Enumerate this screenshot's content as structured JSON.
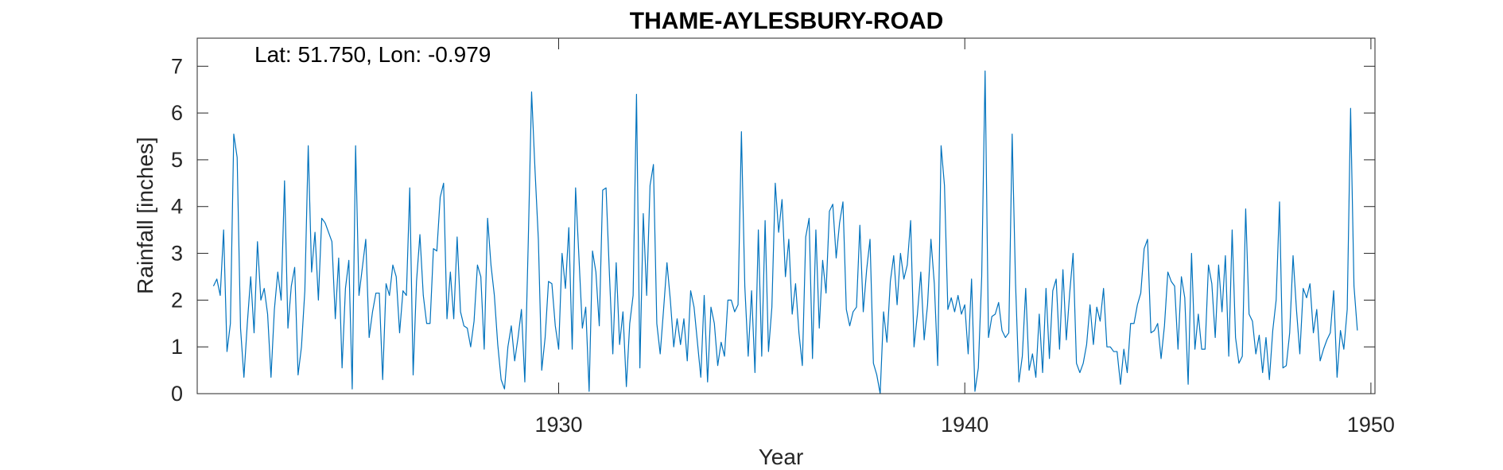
{
  "chart_data": {
    "type": "line",
    "title": "THAME-AYLESBURY-ROAD",
    "annotation": "Lat: 51.750, Lon: -0.979",
    "xlabel": "Year",
    "ylabel": "Rainfall [inches]",
    "xlim": [
      1921.1,
      1950.1
    ],
    "ylim": [
      0,
      7.6
    ],
    "xticks": [
      1930,
      1940,
      1950
    ],
    "yticks": [
      0,
      1,
      2,
      3,
      4,
      5,
      6,
      7
    ],
    "grid": false,
    "line_color": "#0072BD",
    "series": [
      {
        "x_start": 1921.5,
        "x_step": 0.0833333,
        "values": [
          2.3,
          2.45,
          2.1,
          3.5,
          0.9,
          1.5,
          5.55,
          5.05,
          1.4,
          0.35,
          1.5,
          2.5,
          1.3,
          3.25,
          2.0,
          2.25,
          1.7,
          0.35,
          1.8,
          2.6,
          2.0,
          4.55,
          1.4,
          2.3,
          2.7,
          0.4,
          1.0,
          2.2,
          5.3,
          2.6,
          3.45,
          2.0,
          3.75,
          3.65,
          3.45,
          3.25,
          1.6,
          2.9,
          0.55,
          2.25,
          2.85,
          0.1,
          5.3,
          2.1,
          2.7,
          3.3,
          1.2,
          1.75,
          2.15,
          2.15,
          0.3,
          2.35,
          2.1,
          2.75,
          2.5,
          1.3,
          2.2,
          2.1,
          4.4,
          0.4,
          2.4,
          3.4,
          2.1,
          1.5,
          1.5,
          3.1,
          3.05,
          4.2,
          4.5,
          1.6,
          2.6,
          1.6,
          3.35,
          1.75,
          1.45,
          1.4,
          1.0,
          1.55,
          2.75,
          2.5,
          0.95,
          3.75,
          2.75,
          2.1,
          1.05,
          0.3,
          0.1,
          1.0,
          1.45,
          0.7,
          1.2,
          1.8,
          0.25,
          3.2,
          6.45,
          4.8,
          3.3,
          0.5,
          1.2,
          2.4,
          2.35,
          1.45,
          0.95,
          3.0,
          2.25,
          3.55,
          0.95,
          4.4,
          2.9,
          1.4,
          1.85,
          0.05,
          3.05,
          2.6,
          1.45,
          4.35,
          4.4,
          2.55,
          0.85,
          2.8,
          1.05,
          1.75,
          0.15,
          1.5,
          2.1,
          6.4,
          0.55,
          3.85,
          2.1,
          4.45,
          4.9,
          1.5,
          0.85,
          1.8,
          2.8,
          2.0,
          1.0,
          1.6,
          1.05,
          1.6,
          0.7,
          2.2,
          1.85,
          1.1,
          0.35,
          2.1,
          0.25,
          1.85,
          1.5,
          0.6,
          1.1,
          0.8,
          2.0,
          2.0,
          1.75,
          1.9,
          5.6,
          2.3,
          0.8,
          2.2,
          0.45,
          3.5,
          0.8,
          3.7,
          0.9,
          1.85,
          4.5,
          3.45,
          4.15,
          2.5,
          3.3,
          1.7,
          2.35,
          1.3,
          0.6,
          3.35,
          3.75,
          0.75,
          3.5,
          1.4,
          2.85,
          2.15,
          3.9,
          4.05,
          2.9,
          3.65,
          4.1,
          1.8,
          1.45,
          1.75,
          1.85,
          3.6,
          1.75,
          2.65,
          3.3,
          0.65,
          0.4,
          0.0,
          1.75,
          1.1,
          2.4,
          2.95,
          1.9,
          3.0,
          2.45,
          2.75,
          3.7,
          1.0,
          1.7,
          2.6,
          1.15,
          1.9,
          3.3,
          2.35,
          0.6,
          5.3,
          4.45,
          1.8,
          2.05,
          1.75,
          2.1,
          1.7,
          1.9,
          0.85,
          2.45,
          0.05,
          0.55,
          2.5,
          6.9,
          1.2,
          1.65,
          1.7,
          1.95,
          1.35,
          1.2,
          1.3,
          5.55,
          2.35,
          0.25,
          0.8,
          2.25,
          0.5,
          0.85,
          0.35,
          1.7,
          0.45,
          2.25,
          0.75,
          2.2,
          2.45,
          0.95,
          2.65,
          1.15,
          2.15,
          3.0,
          0.65,
          0.45,
          0.65,
          1.05,
          1.9,
          1.05,
          1.85,
          1.55,
          2.25,
          1.0,
          1.0,
          0.9,
          0.9,
          0.2,
          0.95,
          0.45,
          1.5,
          1.5,
          1.9,
          2.15,
          3.1,
          3.3,
          1.3,
          1.35,
          1.5,
          0.75,
          1.45,
          2.6,
          2.4,
          2.3,
          0.95,
          2.5,
          2.05,
          0.2,
          3.0,
          0.95,
          1.7,
          0.95,
          0.95,
          2.75,
          2.35,
          1.2,
          2.75,
          1.75,
          2.95,
          0.8,
          3.5,
          1.2,
          0.65,
          0.8,
          3.95,
          1.7,
          1.55,
          0.85,
          1.25,
          0.45,
          1.2,
          0.3,
          1.35,
          2.0,
          4.1,
          0.55,
          0.6,
          1.3,
          2.95,
          1.8,
          0.85,
          2.25,
          2.05,
          2.35,
          1.3,
          1.8,
          0.7,
          0.95,
          1.15,
          1.3,
          2.2,
          0.35,
          1.35,
          0.95,
          1.8,
          6.1,
          2.3,
          1.35
        ]
      }
    ]
  }
}
